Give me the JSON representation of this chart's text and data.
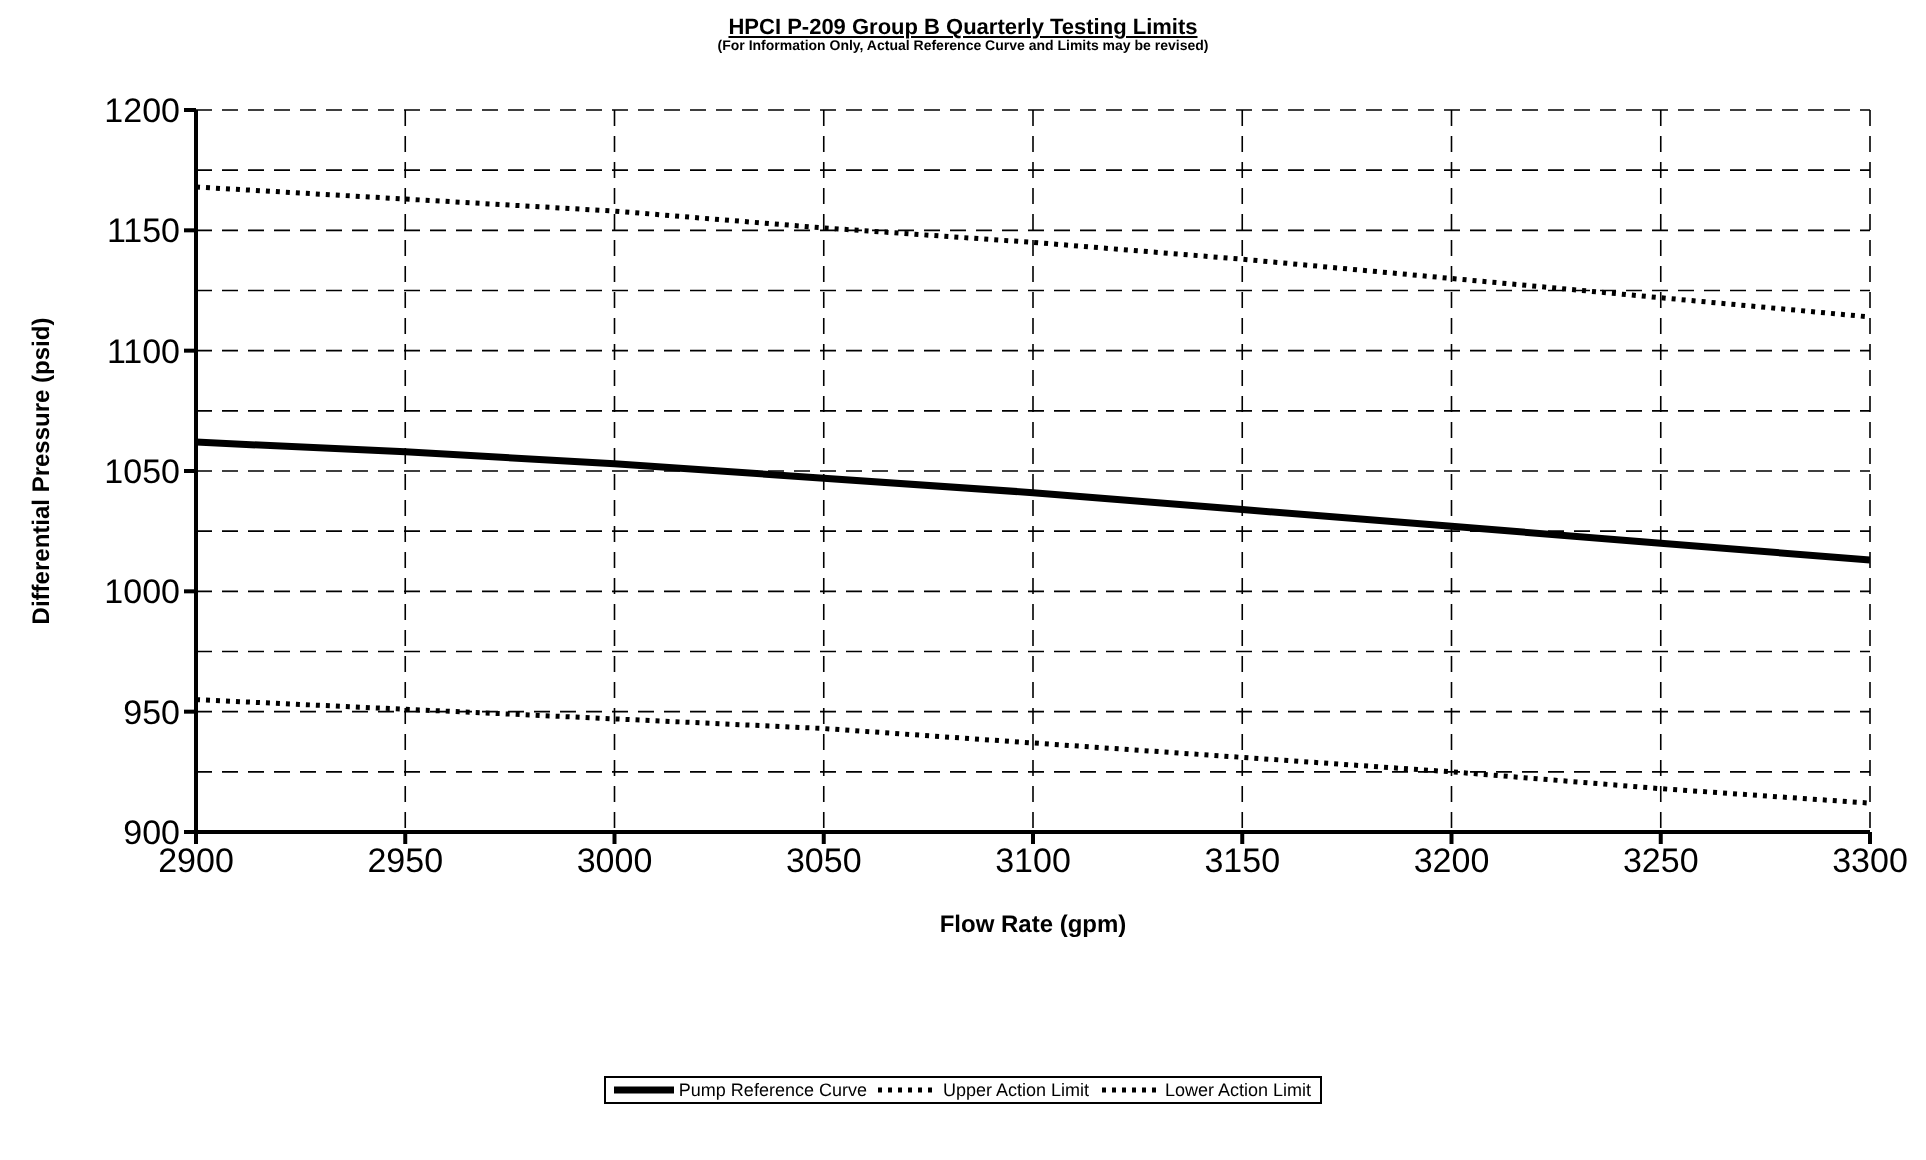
{
  "chart_data": {
    "type": "line",
    "title": "HPCI P-209 Group B Quarterly Testing Limits",
    "subtitle": "(For Information Only, Actual Reference Curve and Limits may be revised)",
    "xlabel": "Flow Rate (gpm)",
    "ylabel": "Differential Pressure (psid)",
    "x": [
      2900,
      2950,
      3000,
      3050,
      3100,
      3150,
      3200,
      3250,
      3300
    ],
    "series": [
      {
        "name": "Pump Reference Curve",
        "color": "#000000",
        "line_style": "solid",
        "values": [
          1062,
          1058,
          1053,
          1047,
          1041,
          1034,
          1027,
          1020,
          1013
        ]
      },
      {
        "name": "Upper Action Limit",
        "color": "#000000",
        "line_style": "dotted",
        "values": [
          1168,
          1163,
          1158,
          1151,
          1145,
          1138,
          1130,
          1122,
          1114
        ]
      },
      {
        "name": "Lower Action Limit",
        "color": "#000000",
        "line_style": "dotted",
        "values": [
          955,
          951,
          947,
          943,
          937,
          931,
          925,
          918,
          912
        ]
      }
    ],
    "xlim": [
      2900,
      3300
    ],
    "xticks": [
      2900,
      2950,
      3000,
      3050,
      3100,
      3150,
      3200,
      3250,
      3300
    ],
    "ylim": [
      900,
      1200
    ],
    "yticks": [
      900,
      950,
      1000,
      1050,
      1100,
      1150,
      1200
    ],
    "grid": true,
    "legend": "bottom",
    "marker": "none"
  }
}
